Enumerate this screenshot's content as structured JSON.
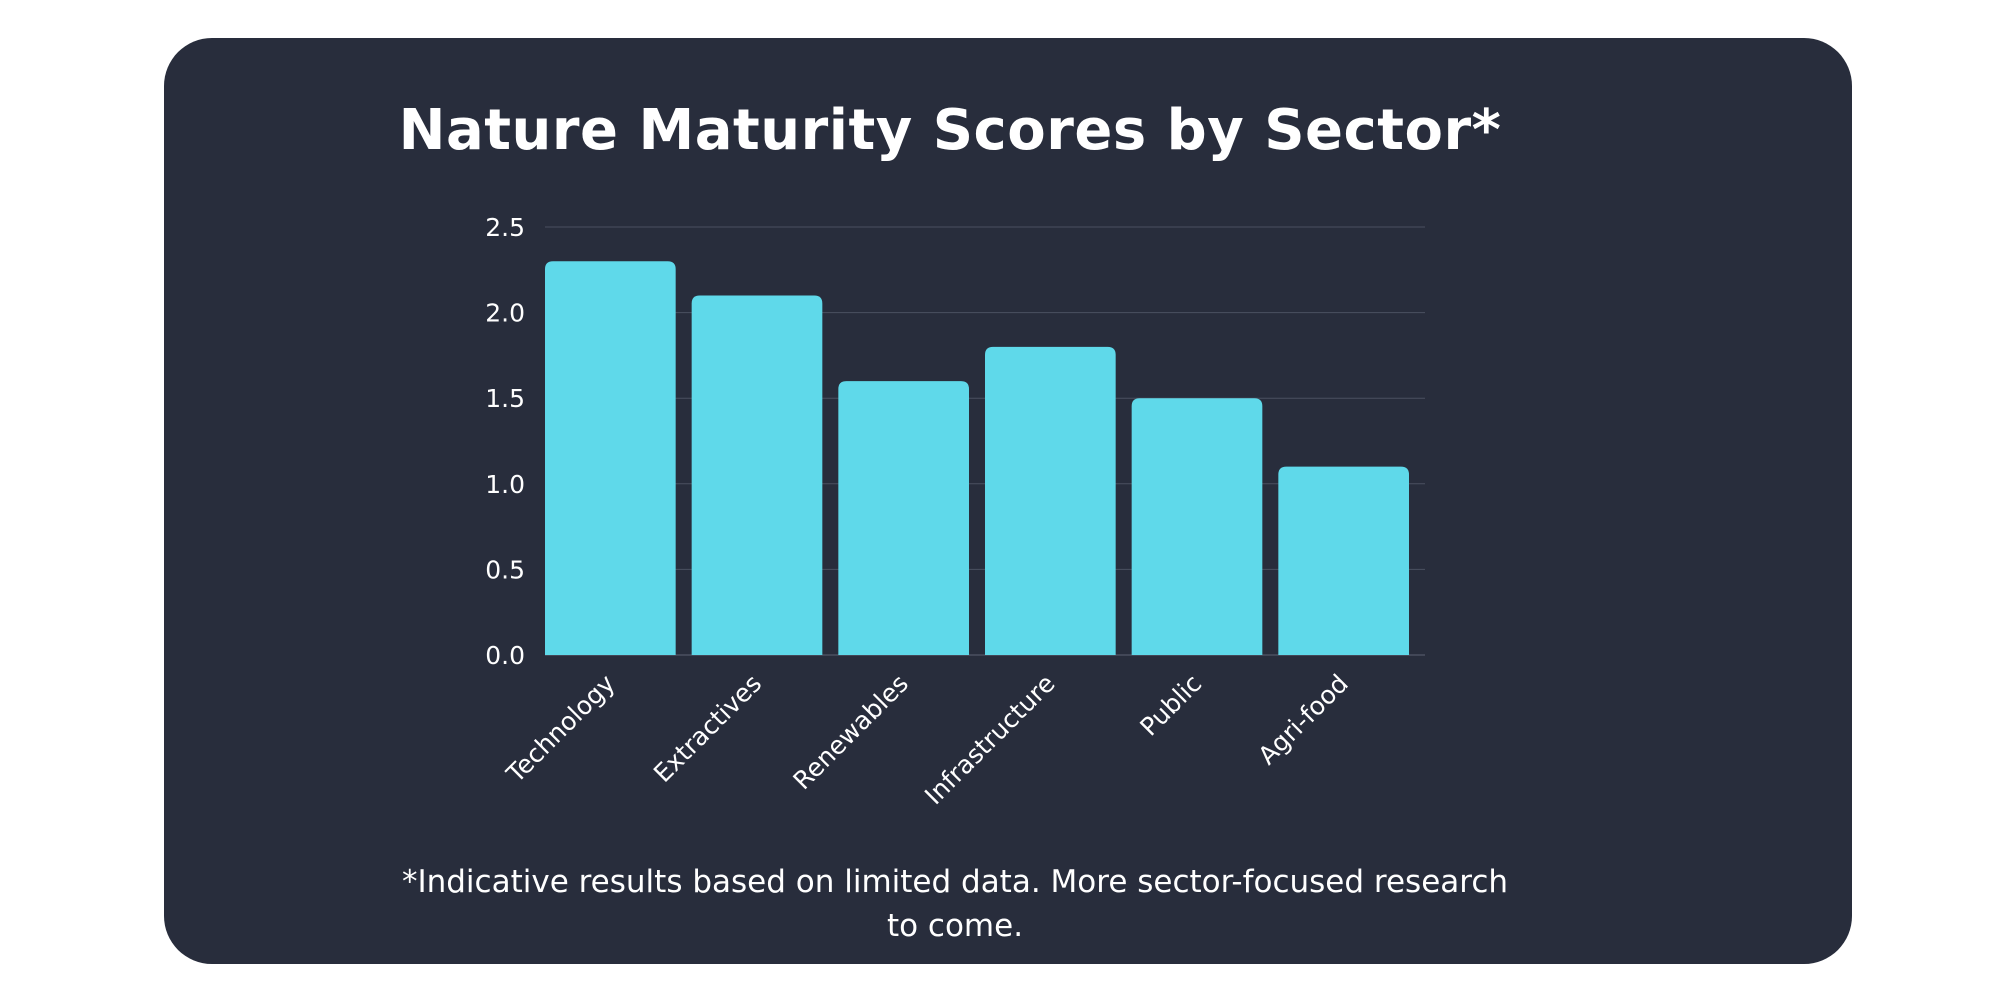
{
  "colors": {
    "page_background": "#ffffff",
    "card_background": "#282d3c",
    "bar": "#5fd9ea",
    "gridline": "#4a5060",
    "text": "#ffffff"
  },
  "chart_data": {
    "type": "bar",
    "title": "Nature Maturity Scores by Sector*",
    "xlabel": "",
    "ylabel": "",
    "categories": [
      "Technology",
      "Extractives",
      "Renewables",
      "Infrastructure",
      "Public",
      "Agri-food"
    ],
    "values": [
      2.3,
      2.1,
      1.6,
      1.8,
      1.5,
      1.1
    ],
    "ylim": [
      0,
      2.5
    ],
    "yticks": [
      "0.0",
      "0.5",
      "1.0",
      "1.5",
      "2.0",
      "2.5"
    ],
    "grid": true,
    "legend": "none",
    "footnote_lines": [
      "*Indicative results based on limited data. More sector-focused research",
      "to come."
    ]
  }
}
